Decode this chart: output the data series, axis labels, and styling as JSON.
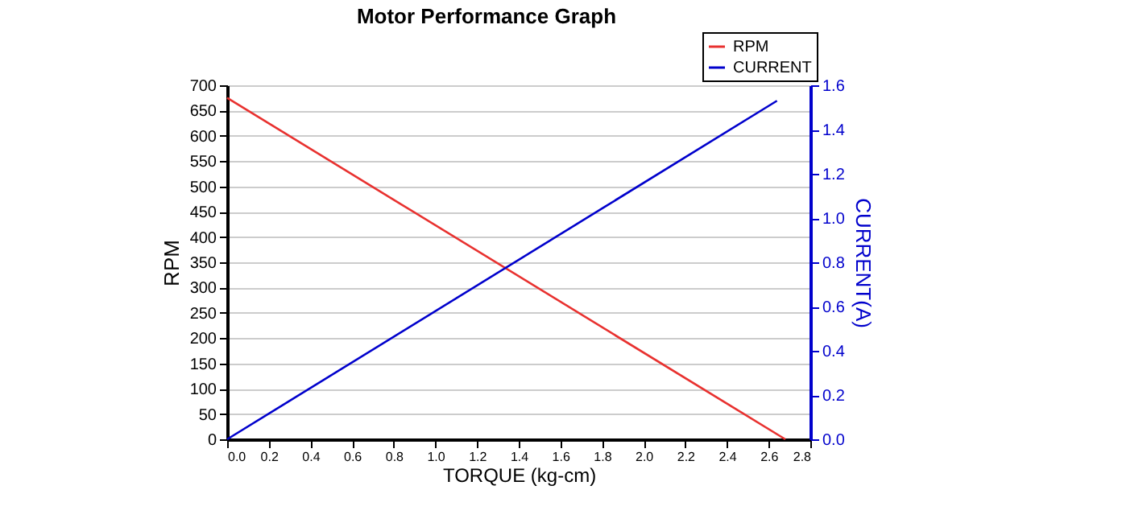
{
  "chart_data": {
    "type": "line",
    "title": "Motor Performance Graph",
    "xlabel": "TORQUE (kg-cm)",
    "ylabel": "RPM",
    "y2label": "CURRENT(A)",
    "series": [
      {
        "name": "RPM",
        "color": "#e8312f",
        "x": [
          0.0,
          2.68
        ],
        "values": [
          675,
          0
        ]
      },
      {
        "name": "CURRENT",
        "color": "#0000cc",
        "axis": "y2",
        "x": [
          0.0,
          2.64
        ],
        "values": [
          0.0,
          1.53
        ]
      }
    ],
    "xlim": [
      0.0,
      2.8
    ],
    "xticks": [
      {
        "value": 0,
        "label": "0.0"
      },
      0.2,
      0.4,
      0.6,
      0.8,
      {
        "value": 1,
        "label": "1.0"
      },
      1.2,
      1.4,
      1.6,
      1.8,
      {
        "value": 2,
        "label": "2.0"
      },
      2.2,
      2.4,
      2.6,
      2.8
    ],
    "ylim": [
      0,
      700
    ],
    "yticks": [
      0,
      50,
      100,
      150,
      200,
      250,
      300,
      350,
      400,
      450,
      500,
      550,
      600,
      650,
      700
    ],
    "y2lim": [
      0.0,
      1.6
    ],
    "y2ticks": [
      {
        "value": 0,
        "label": "0.0"
      },
      0.2,
      0.4,
      0.6,
      0.8,
      {
        "value": 1,
        "label": "1.0"
      },
      1.2,
      1.4,
      1.6
    ],
    "grid": "y",
    "legend": "top right",
    "marker": "none",
    "line_style": "solid"
  }
}
